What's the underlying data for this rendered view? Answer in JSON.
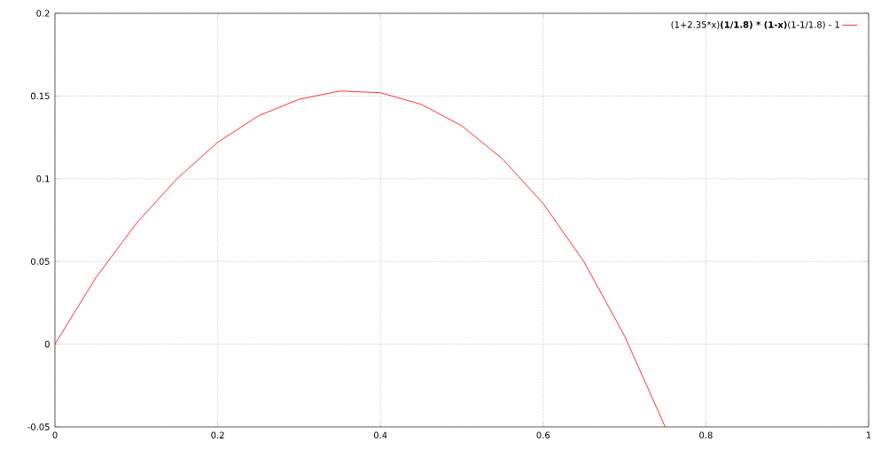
{
  "chart_data": {
    "type": "line",
    "x": [
      0,
      0.05,
      0.1,
      0.15,
      0.2,
      0.25,
      0.3,
      0.35,
      0.4,
      0.45,
      0.5,
      0.55,
      0.6,
      0.65,
      0.7,
      0.75
    ],
    "series": [
      {
        "name": "(1+2.35*x)**(1/1.8) * (1-x)**(1-1/1.8) - 1",
        "color": "#ff0000",
        "values": [
          0,
          0.04,
          0.073,
          0.1,
          0.122,
          0.138,
          0.148,
          0.153,
          0.152,
          0.145,
          0.132,
          0.112,
          0.085,
          0.05,
          0.005,
          -0.05
        ]
      }
    ],
    "xlim": [
      0,
      1
    ],
    "ylim": [
      -0.05,
      0.2
    ],
    "xticks": [
      0,
      0.2,
      0.4,
      0.6,
      0.8,
      1
    ],
    "yticks": [
      -0.05,
      0,
      0.05,
      0.1,
      0.15,
      0.2
    ],
    "grid": true,
    "legend": "top right",
    "line_style": "solid"
  }
}
